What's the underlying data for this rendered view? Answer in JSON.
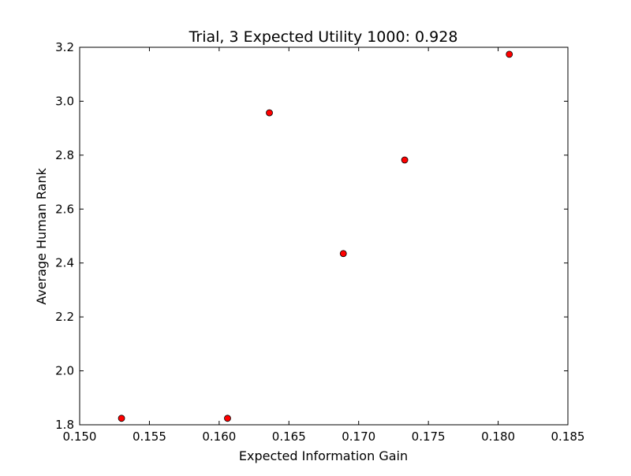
{
  "chart_data": {
    "type": "scatter",
    "title": "Trial, 3 Expected Utility 1000: 0.928",
    "xlabel": "Expected Information Gain",
    "ylabel": "Average Human Rank",
    "xlim": [
      0.15,
      0.185
    ],
    "ylim": [
      1.8,
      3.2
    ],
    "xticks": [
      "0.150",
      "0.155",
      "0.160",
      "0.165",
      "0.170",
      "0.175",
      "0.180",
      "0.185"
    ],
    "yticks": [
      "1.8",
      "2.0",
      "2.2",
      "2.4",
      "2.6",
      "2.8",
      "3.0",
      "3.2"
    ],
    "grid": false,
    "series": [
      {
        "marker_color": "#ff0000",
        "points": [
          {
            "x": 0.153,
            "y": 1.824
          },
          {
            "x": 0.1606,
            "y": 1.824
          },
          {
            "x": 0.1636,
            "y": 2.957
          },
          {
            "x": 0.1689,
            "y": 2.435
          },
          {
            "x": 0.1733,
            "y": 2.782
          },
          {
            "x": 0.1808,
            "y": 3.174
          }
        ]
      }
    ]
  }
}
